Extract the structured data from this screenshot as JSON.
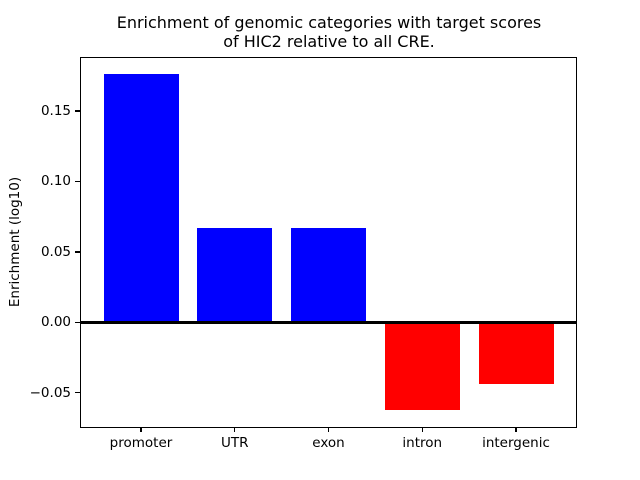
{
  "figure": {
    "title": "Enrichment of genomic categories with target scores\nof HIC2 relative to all CRE.",
    "ylabel": "Enrichment (log10)"
  },
  "chart_data": {
    "type": "bar",
    "title": "Enrichment of genomic categories with target scores of HIC2 relative to all CRE.",
    "xlabel": "",
    "ylabel": "Enrichment (log10)",
    "categories": [
      "promoter",
      "UTR",
      "exon",
      "intron",
      "intergenic"
    ],
    "values": [
      0.176,
      0.067,
      0.067,
      -0.062,
      -0.044
    ],
    "colors": {
      "positive": "#0000ff",
      "negative": "#ff0000"
    },
    "bar_width_fraction": 0.8,
    "xlim": [
      -0.64,
      4.64
    ],
    "ylim": [
      -0.0743,
      0.1876
    ],
    "yticks": [
      {
        "v": 0.15,
        "label": "0.15"
      },
      {
        "v": 0.1,
        "label": "0.10"
      },
      {
        "v": 0.05,
        "label": "0.05"
      },
      {
        "v": 0.0,
        "label": "0.00"
      },
      {
        "v": -0.05,
        "label": "−0.05"
      }
    ],
    "grid": false,
    "legend": "none",
    "zero_line": true
  }
}
